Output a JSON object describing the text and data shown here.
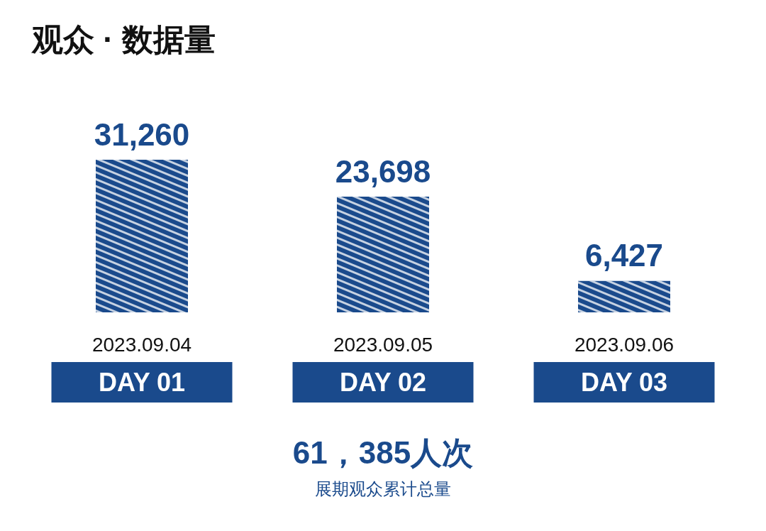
{
  "chart_data": {
    "type": "bar",
    "title": "观众 · 数据量",
    "categories": [
      "2023.09.04",
      "2023.09.05",
      "2023.09.06"
    ],
    "values": [
      31260,
      23698,
      6427
    ],
    "value_labels": [
      "31,260",
      "23,698",
      "6,427"
    ],
    "color": "#1a4a8c",
    "grid": false,
    "annotations": [
      "DAY 01",
      "DAY 02",
      "DAY 03",
      "61，385人次",
      "展期观众累计总量"
    ]
  }
}
